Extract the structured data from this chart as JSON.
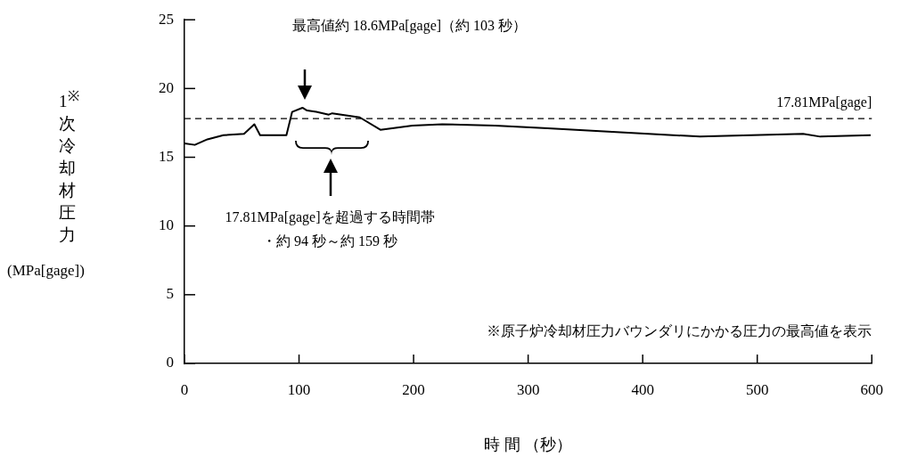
{
  "chart_data": {
    "type": "line",
    "xlabel": "時 間 （秒）",
    "ylabel": "1$^{※}$次冷却材圧力 (MPa[gage])",
    "x": [
      0,
      9,
      20,
      34,
      52,
      61,
      66,
      89,
      94,
      103,
      107,
      115,
      126,
      129,
      153,
      171,
      199,
      225,
      271,
      317,
      450,
      540,
      555,
      599
    ],
    "series": [
      {
        "color": "#000000",
        "values": [
          16.0,
          15.9,
          16.3,
          16.6,
          16.7,
          17.4,
          16.6,
          16.6,
          18.3,
          18.6,
          18.4,
          18.3,
          18.1,
          18.2,
          17.9,
          17.0,
          17.3,
          17.4,
          17.3,
          17.1,
          16.5,
          16.7,
          16.5,
          16.6
        ]
      }
    ],
    "xlim": [
      0,
      600
    ],
    "xticks": [
      0,
      100,
      200,
      300,
      400,
      500,
      600
    ],
    "ylim": [
      0,
      25
    ],
    "yticks": [
      0,
      5,
      10,
      15,
      20,
      25
    ],
    "grid": false,
    "legend": false,
    "marker": "none",
    "line_style": "solid",
    "ref_lines": [
      {
        "axis": "y",
        "value": 17.81,
        "label": "17.81MPa[gage]",
        "line_style": "dashed",
        "color": "#000000"
      }
    ],
    "annotations": [
      "最高値約 18.6MPa[gage]（約 103 秒）",
      "17.81MPa[gage]を超過する時間帯",
      "・約 94 秒～約 159 秒",
      "※原子炉冷却材圧力バウンダリにかかる圧力の最高値を表示"
    ]
  }
}
